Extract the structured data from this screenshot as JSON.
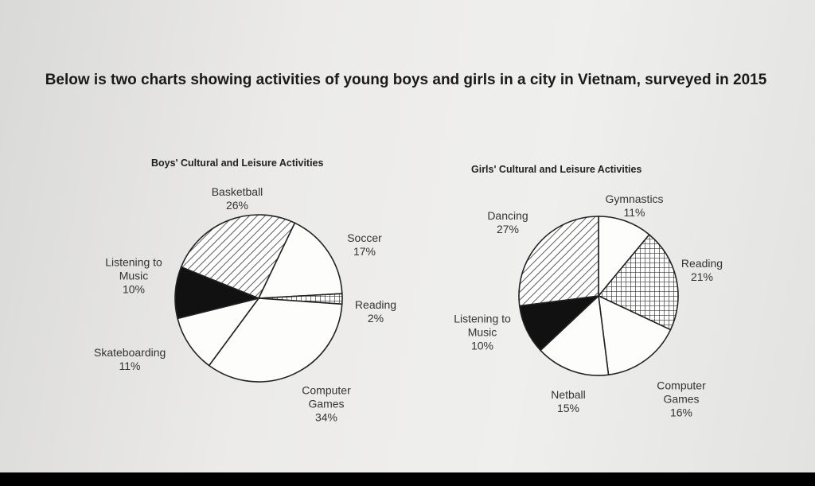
{
  "heading": "Below is two charts showing activities of young boys and girls in a city in Vietnam, surveyed in 2015",
  "chart_data": [
    {
      "type": "pie",
      "title": "Boys' Cultural and Leisure Activities",
      "categories": [
        "Basketball",
        "Soccer",
        "Reading",
        "Computer Games",
        "Skateboarding",
        "Listening to Music"
      ],
      "values": [
        26,
        17,
        2,
        34,
        11,
        10
      ],
      "value_labels": [
        "26%",
        "17%",
        "2%",
        "34%",
        "11%",
        "10%"
      ],
      "fills": [
        "hatch",
        "white",
        "crosshatch",
        "white",
        "white",
        "black"
      ]
    },
    {
      "type": "pie",
      "title": "Girls' Cultural and Leisure Activities",
      "categories": [
        "Gymnastics",
        "Reading",
        "Computer Games",
        "Netball",
        "Listening to Music",
        "Dancing"
      ],
      "values": [
        11,
        21,
        16,
        15,
        10,
        27
      ],
      "value_labels": [
        "11%",
        "21%",
        "16%",
        "15%",
        "10%",
        "27%"
      ],
      "fills": [
        "white",
        "crosshatch",
        "white",
        "white",
        "black",
        "hatch"
      ]
    }
  ]
}
